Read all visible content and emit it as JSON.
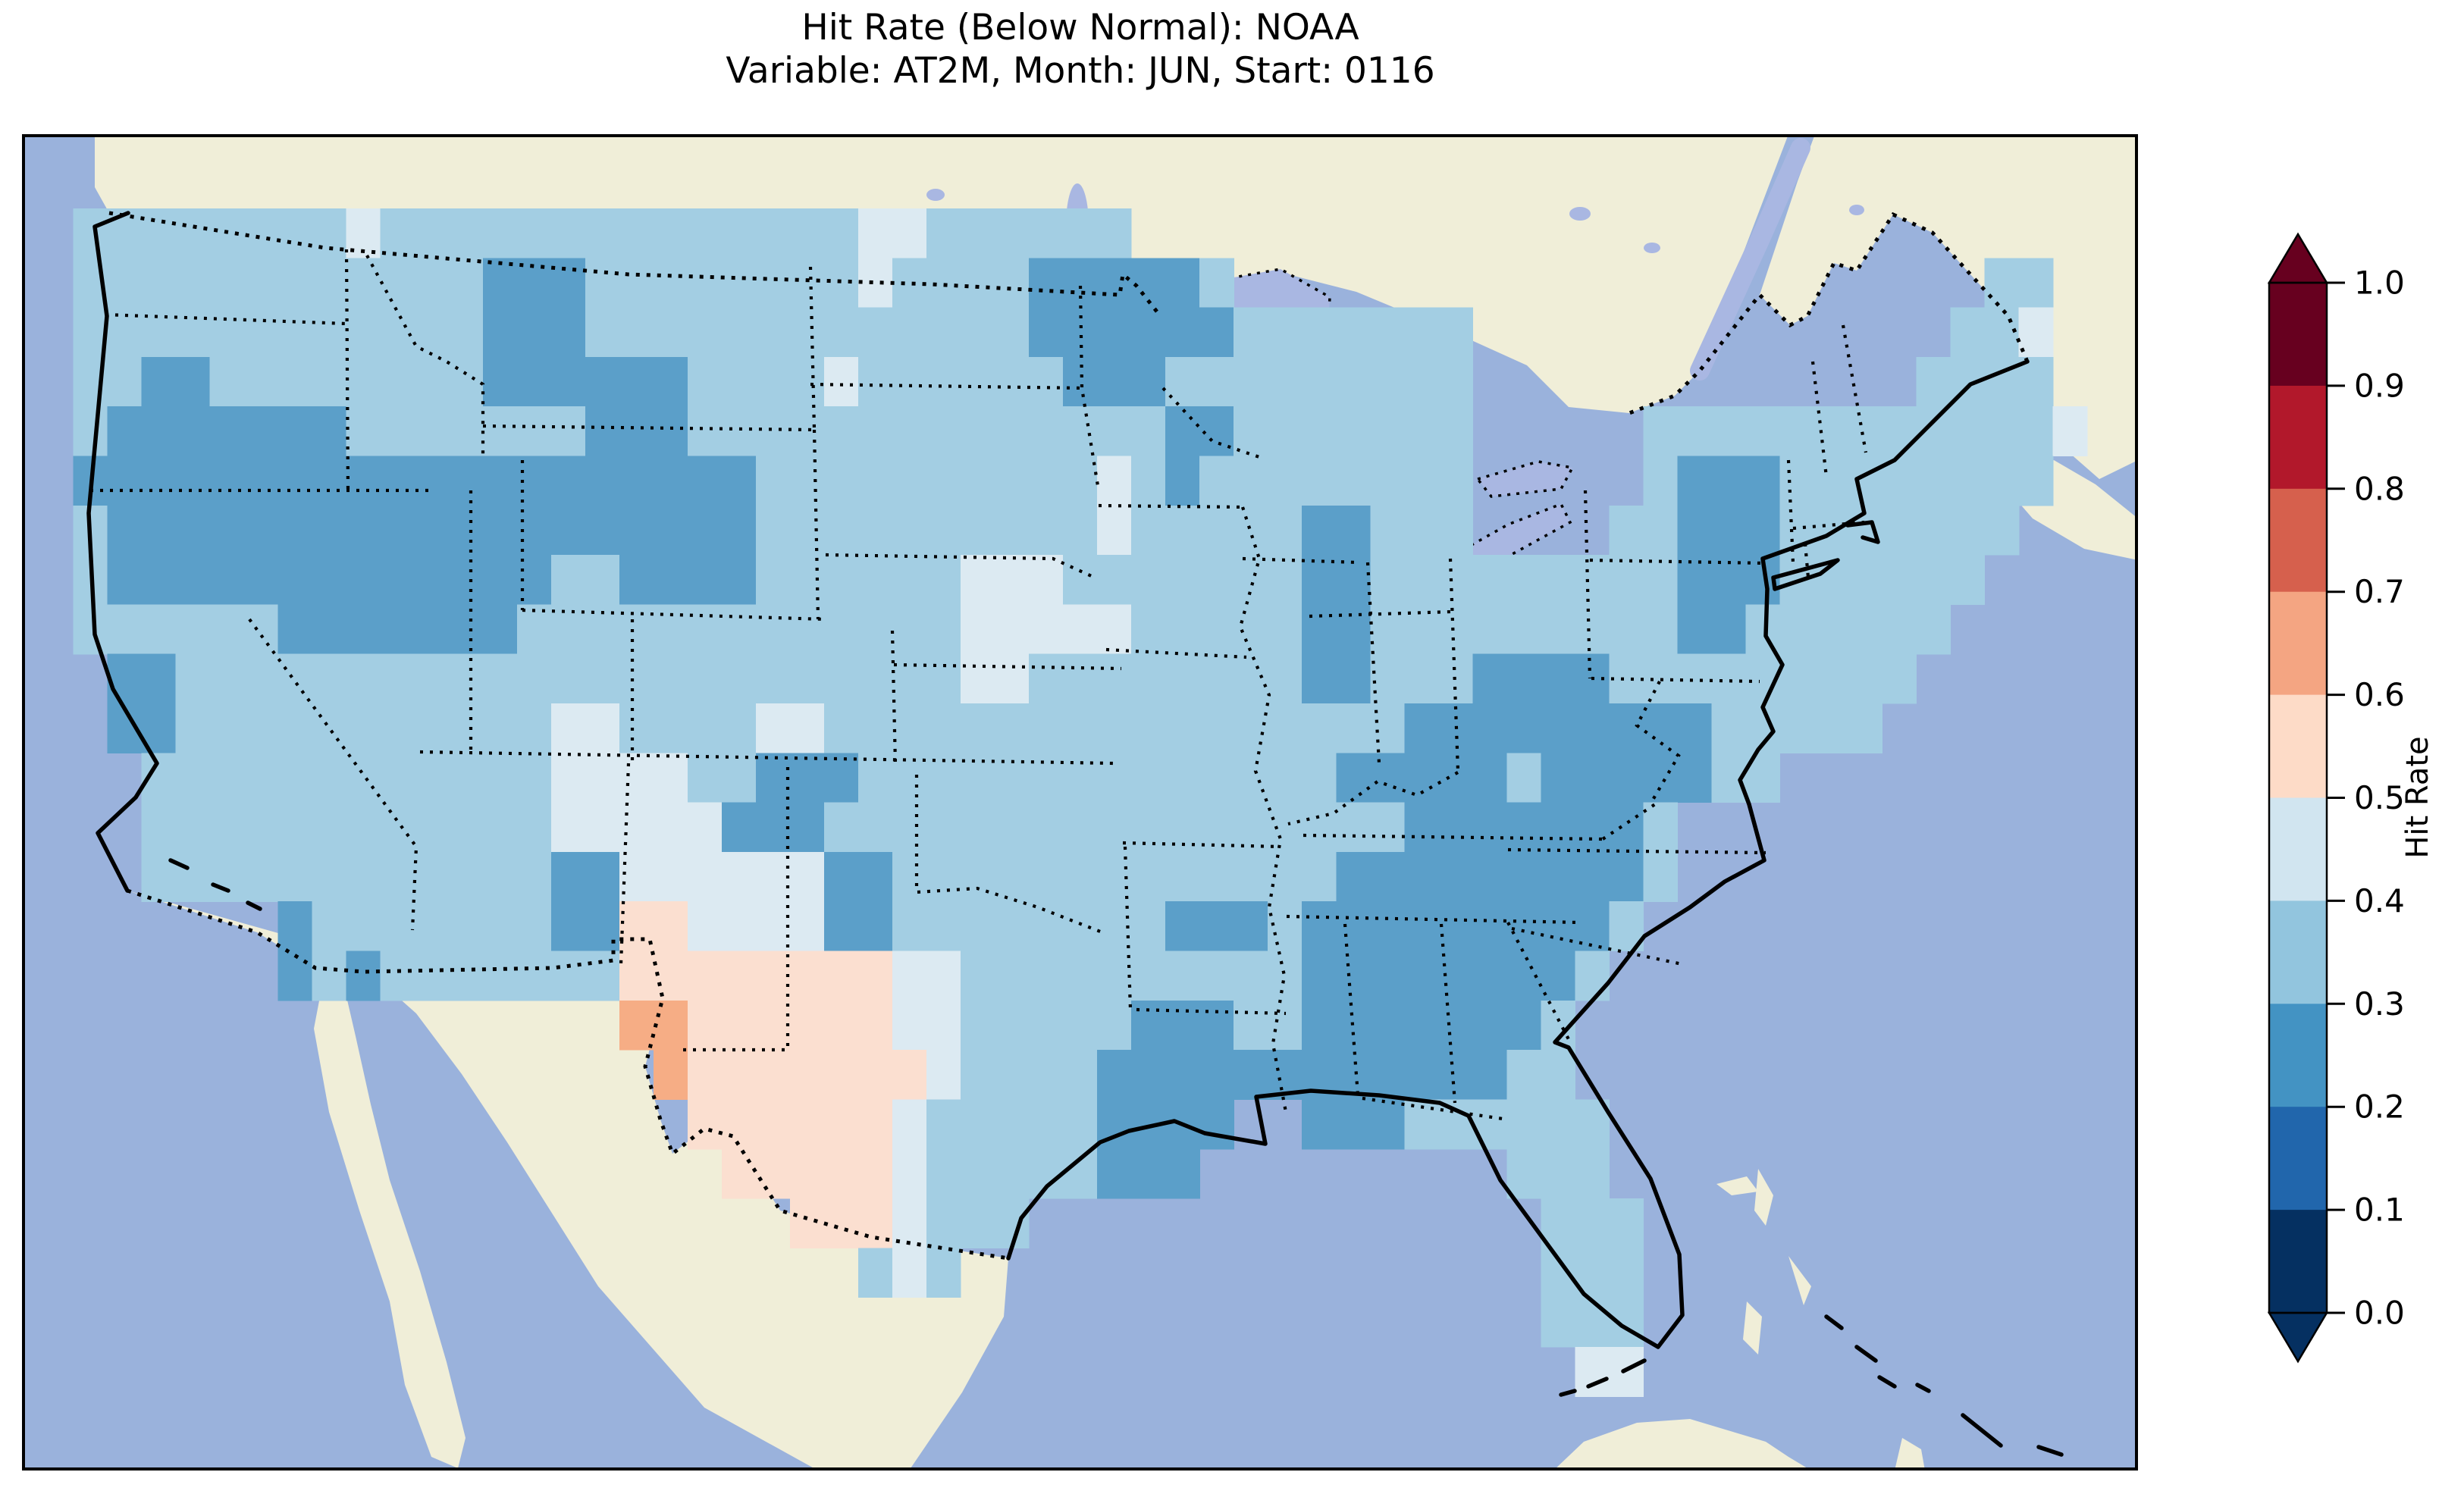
{
  "title": {
    "line1": "Hit Rate (Below Normal): NOAA",
    "line2": "Variable: AT2M, Month: JUN, Start: 0116"
  },
  "colorbar": {
    "label": "Hit Rate",
    "tick_labels": [
      "1.0",
      "0.9",
      "0.8",
      "0.7",
      "0.6",
      "0.5",
      "0.4",
      "0.3",
      "0.2",
      "0.1",
      "0.0"
    ],
    "segments_top_to_bottom": [
      "#67001f",
      "#b2182b",
      "#d6604d",
      "#f4a582",
      "#fddbc7",
      "#d1e5f0",
      "#92c5de",
      "#4393c3",
      "#2166ac",
      "#053061"
    ],
    "over_arrow_color": "#67001f",
    "under_arrow_color": "#053061"
  },
  "map": {
    "ocean_color": "#9ab2dc",
    "land_color": "#f0eed8",
    "lake_color": "#a9b7e2",
    "coastline_color": "#000000",
    "cell_palette": {
      "3": "#5b9fc9",
      "4": "#a3cee3",
      "5": "#dceaf2",
      "6": "#fbdfd0",
      "7": "#f6ad85"
    }
  },
  "chart_data": {
    "type": "heatmap",
    "title": "Hit Rate (Below Normal): NOAA",
    "variable": "AT2M",
    "month": "JUN",
    "start": "0116",
    "colorbar_label": "Hit Rate",
    "colormap": "RdBu reversed, 10 discrete bins with pointed over/under arrows",
    "value_range": [
      0.0,
      1.0
    ],
    "colorbar_ticks": [
      1.0,
      0.9,
      0.8,
      0.7,
      0.6,
      0.5,
      0.4,
      0.3,
      0.2,
      0.1,
      0.0
    ],
    "bin_values": {
      "3": [
        0.2,
        0.3
      ],
      "4": [
        0.3,
        0.4
      ],
      "5": [
        0.4,
        0.5
      ],
      "6": [
        0.5,
        0.6
      ],
      "7": [
        0.6,
        0.7
      ]
    },
    "grid_columns": 62,
    "grid_rows": 27,
    "grid_rows_runlength": [
      [
        [
          62,
          "."
        ]
      ],
      [
        [
          1,
          "."
        ],
        [
          8,
          "4"
        ],
        [
          1,
          "5"
        ],
        [
          14,
          "4"
        ],
        [
          2,
          "5"
        ],
        [
          6,
          "4"
        ],
        [
          30,
          "."
        ]
      ],
      [
        [
          1,
          "."
        ],
        [
          12,
          "4"
        ],
        [
          3,
          "3"
        ],
        [
          8,
          "4"
        ],
        [
          1,
          "5"
        ],
        [
          4,
          "4"
        ],
        [
          5,
          "3"
        ],
        [
          1,
          "4"
        ],
        [
          22,
          "."
        ],
        [
          2,
          "4"
        ],
        [
          3,
          "."
        ]
      ],
      [
        [
          1,
          "."
        ],
        [
          12,
          "4"
        ],
        [
          3,
          "3"
        ],
        [
          13,
          "4"
        ],
        [
          6,
          "3"
        ],
        [
          7,
          "4"
        ],
        [
          14,
          "."
        ],
        [
          2,
          "4"
        ],
        [
          1,
          "5"
        ],
        [
          3,
          "."
        ]
      ],
      [
        [
          1,
          "."
        ],
        [
          2,
          "4"
        ],
        [
          2,
          "3"
        ],
        [
          8,
          "4"
        ],
        [
          6,
          "3"
        ],
        [
          4,
          "4"
        ],
        [
          1,
          "5"
        ],
        [
          6,
          "4"
        ],
        [
          3,
          "3"
        ],
        [
          9,
          "4"
        ],
        [
          13,
          "."
        ],
        [
          4,
          "4"
        ],
        [
          3,
          "."
        ]
      ],
      [
        [
          1,
          "."
        ],
        [
          1,
          "4"
        ],
        [
          7,
          "3"
        ],
        [
          7,
          "4"
        ],
        [
          3,
          "3"
        ],
        [
          14,
          "4"
        ],
        [
          2,
          "3"
        ],
        [
          7,
          "4"
        ],
        [
          5,
          "."
        ],
        [
          12,
          "4"
        ],
        [
          1,
          "5"
        ],
        [
          2,
          "."
        ]
      ],
      [
        [
          1,
          "."
        ],
        [
          20,
          "3"
        ],
        [
          10,
          "4"
        ],
        [
          1,
          "5"
        ],
        [
          1,
          "4"
        ],
        [
          1,
          "3"
        ],
        [
          8,
          "4"
        ],
        [
          5,
          "."
        ],
        [
          1,
          "4"
        ],
        [
          3,
          "3"
        ],
        [
          8,
          "4"
        ],
        [
          3,
          "."
        ]
      ],
      [
        [
          1,
          "."
        ],
        [
          1,
          "4"
        ],
        [
          19,
          "3"
        ],
        [
          10,
          "4"
        ],
        [
          1,
          "5"
        ],
        [
          5,
          "4"
        ],
        [
          2,
          "3"
        ],
        [
          3,
          "4"
        ],
        [
          4,
          "."
        ],
        [
          2,
          "4"
        ],
        [
          3,
          "3"
        ],
        [
          7,
          "4"
        ],
        [
          4,
          "."
        ]
      ],
      [
        [
          1,
          "."
        ],
        [
          1,
          "4"
        ],
        [
          13,
          "3"
        ],
        [
          2,
          "4"
        ],
        [
          4,
          "3"
        ],
        [
          6,
          "4"
        ],
        [
          3,
          "5"
        ],
        [
          7,
          "4"
        ],
        [
          2,
          "3"
        ],
        [
          9,
          "4"
        ],
        [
          3,
          "3"
        ],
        [
          6,
          "4"
        ],
        [
          5,
          "."
        ]
      ],
      [
        [
          1,
          "."
        ],
        [
          6,
          "4"
        ],
        [
          7,
          "3"
        ],
        [
          13,
          "4"
        ],
        [
          5,
          "5"
        ],
        [
          5,
          "4"
        ],
        [
          2,
          "3"
        ],
        [
          9,
          "4"
        ],
        [
          2,
          "3"
        ],
        [
          6,
          "4"
        ],
        [
          6,
          "."
        ]
      ],
      [
        [
          2,
          "."
        ],
        [
          2,
          "3"
        ],
        [
          23,
          "4"
        ],
        [
          2,
          "5"
        ],
        [
          8,
          "4"
        ],
        [
          2,
          "3"
        ],
        [
          3,
          "4"
        ],
        [
          4,
          "3"
        ],
        [
          9,
          "4"
        ],
        [
          7,
          "."
        ]
      ],
      [
        [
          2,
          "."
        ],
        [
          2,
          "3"
        ],
        [
          11,
          "4"
        ],
        [
          2,
          "5"
        ],
        [
          4,
          "4"
        ],
        [
          2,
          "5"
        ],
        [
          17,
          "4"
        ],
        [
          9,
          "3"
        ],
        [
          5,
          "4"
        ],
        [
          8,
          "."
        ]
      ],
      [
        [
          3,
          "."
        ],
        [
          12,
          "4"
        ],
        [
          4,
          "5"
        ],
        [
          2,
          "4"
        ],
        [
          3,
          "3"
        ],
        [
          14,
          "4"
        ],
        [
          5,
          "3"
        ],
        [
          1,
          "4"
        ],
        [
          5,
          "3"
        ],
        [
          2,
          "4"
        ],
        [
          11,
          "."
        ]
      ],
      [
        [
          3,
          "."
        ],
        [
          12,
          "4"
        ],
        [
          5,
          "5"
        ],
        [
          3,
          "3"
        ],
        [
          17,
          "4"
        ],
        [
          7,
          "3"
        ],
        [
          1,
          "4"
        ],
        [
          14,
          "."
        ]
      ],
      [
        [
          3,
          "."
        ],
        [
          12,
          "4"
        ],
        [
          2,
          "3"
        ],
        [
          6,
          "5"
        ],
        [
          2,
          "3"
        ],
        [
          13,
          "4"
        ],
        [
          9,
          "3"
        ],
        [
          1,
          "4"
        ],
        [
          14,
          "."
        ]
      ],
      [
        [
          7,
          "."
        ],
        [
          1,
          "3"
        ],
        [
          7,
          "4"
        ],
        [
          2,
          "3"
        ],
        [
          2,
          "6"
        ],
        [
          4,
          "5"
        ],
        [
          2,
          "3"
        ],
        [
          8,
          "4"
        ],
        [
          3,
          "3"
        ],
        [
          1,
          "4"
        ],
        [
          9,
          "3"
        ],
        [
          1,
          "4"
        ],
        [
          15,
          "."
        ]
      ],
      [
        [
          7,
          "."
        ],
        [
          1,
          "3"
        ],
        [
          1,
          "4"
        ],
        [
          1,
          "3"
        ],
        [
          7,
          "4"
        ],
        [
          8,
          "6"
        ],
        [
          2,
          "5"
        ],
        [
          10,
          "4"
        ],
        [
          8,
          "3"
        ],
        [
          1,
          "4"
        ],
        [
          16,
          "."
        ]
      ],
      [
        [
          17,
          "."
        ],
        [
          2,
          "7"
        ],
        [
          6,
          "6"
        ],
        [
          2,
          "5"
        ],
        [
          5,
          "4"
        ],
        [
          3,
          "3"
        ],
        [
          2,
          "4"
        ],
        [
          7,
          "3"
        ],
        [
          1,
          "4"
        ],
        [
          17,
          "."
        ]
      ],
      [
        [
          18,
          "."
        ],
        [
          1,
          "7"
        ],
        [
          7,
          "6"
        ],
        [
          1,
          "5"
        ],
        [
          4,
          "4"
        ],
        [
          12,
          "3"
        ],
        [
          2,
          "4"
        ],
        [
          17,
          "."
        ]
      ],
      [
        [
          19,
          "."
        ],
        [
          6,
          "6"
        ],
        [
          1,
          "5"
        ],
        [
          5,
          "4"
        ],
        [
          4,
          "3"
        ],
        [
          2,
          "."
        ],
        [
          3,
          "3"
        ],
        [
          6,
          "4"
        ],
        [
          16,
          "."
        ]
      ],
      [
        [
          20,
          "."
        ],
        [
          5,
          "6"
        ],
        [
          1,
          "5"
        ],
        [
          5,
          "4"
        ],
        [
          3,
          "3"
        ],
        [
          9,
          "."
        ],
        [
          3,
          "4"
        ],
        [
          16,
          "."
        ]
      ],
      [
        [
          22,
          "."
        ],
        [
          3,
          "6"
        ],
        [
          1,
          "5"
        ],
        [
          3,
          "4"
        ],
        [
          15,
          "."
        ],
        [
          3,
          "4"
        ],
        [
          15,
          "."
        ]
      ],
      [
        [
          24,
          "."
        ],
        [
          1,
          "4"
        ],
        [
          1,
          "5"
        ],
        [
          1,
          "4"
        ],
        [
          17,
          "."
        ],
        [
          3,
          "4"
        ],
        [
          15,
          "."
        ]
      ],
      [
        [
          44,
          "."
        ],
        [
          3,
          "4"
        ],
        [
          15,
          "."
        ]
      ],
      [
        [
          45,
          "."
        ],
        [
          2,
          "5"
        ],
        [
          15,
          "."
        ]
      ],
      [
        [
          62,
          "."
        ]
      ],
      [
        [
          62,
          "."
        ]
      ]
    ],
    "summary_regions": [
      {
        "region": "Most of the contiguous US",
        "hit_rate_bin": "0.3-0.4"
      },
      {
        "region": "Oregon, northern Nevada, Utah, southern Idaho, Wyoming, western Montana",
        "hit_rate_bin": "0.2-0.3"
      },
      {
        "region": "Northern Minnesota band",
        "hit_rate_bin": "0.2-0.3"
      },
      {
        "region": "Lake Michigan / Wisconsin patches",
        "hit_rate_bin": "0.2-0.3"
      },
      {
        "region": "Upstate New York patch",
        "hit_rate_bin": "0.2-0.3"
      },
      {
        "region": "Virginia, Carolinas, Georgia into Florida panhandle, Louisiana coast",
        "hit_rate_bin": "0.2-0.3"
      },
      {
        "region": "Central California patch, AZ/NM border patches",
        "hit_rate_bin": "0.2-0.3"
      },
      {
        "region": "Nebraska/Iowa and Texas panhandle pale patches",
        "hit_rate_bin": "0.4-0.5"
      },
      {
        "region": "West Texas pocket",
        "hit_rate_bin": "0.5-0.6"
      },
      {
        "region": "West Texas core (Pecos / Big Bend)",
        "hit_rate_bin": "0.6-0.7"
      }
    ]
  }
}
